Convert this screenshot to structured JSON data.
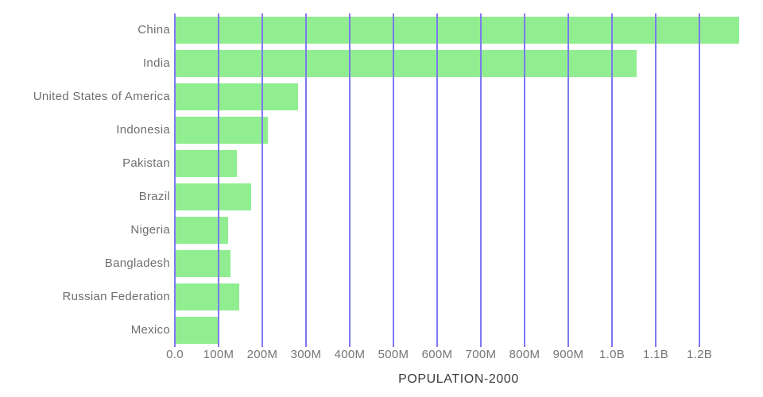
{
  "chart_data": {
    "type": "bar",
    "orientation": "horizontal",
    "title": "",
    "xlabel": "POPULATION-2000",
    "ylabel": "",
    "categories": [
      "China",
      "India",
      "United States of America",
      "Indonesia",
      "Pakistan",
      "Brazil",
      "Nigeria",
      "Bangladesh",
      "Russian Federation",
      "Mexico"
    ],
    "values_millions": [
      1291,
      1057,
      282,
      212,
      142,
      175,
      122,
      128,
      147,
      99
    ],
    "x_ticks": [
      {
        "label": "0.0",
        "millions": 0
      },
      {
        "label": "100M",
        "millions": 100
      },
      {
        "label": "200M",
        "millions": 200
      },
      {
        "label": "300M",
        "millions": 300
      },
      {
        "label": "400M",
        "millions": 400
      },
      {
        "label": "500M",
        "millions": 500
      },
      {
        "label": "600M",
        "millions": 600
      },
      {
        "label": "700M",
        "millions": 700
      },
      {
        "label": "800M",
        "millions": 800
      },
      {
        "label": "900M",
        "millions": 900
      },
      {
        "label": "1.0B",
        "millions": 1000
      },
      {
        "label": "1.1B",
        "millions": 1100
      },
      {
        "label": "1.2B",
        "millions": 1200
      }
    ],
    "xlim_millions": [
      0,
      1300
    ],
    "grid": true,
    "legend": false,
    "colors": {
      "bar": "#90ee90",
      "gridline": "#7b79f1",
      "category_label": "#6f6f6f",
      "tick_label": "#757575",
      "axis_title": "#3b3b3b",
      "background": "#ffffff"
    }
  }
}
